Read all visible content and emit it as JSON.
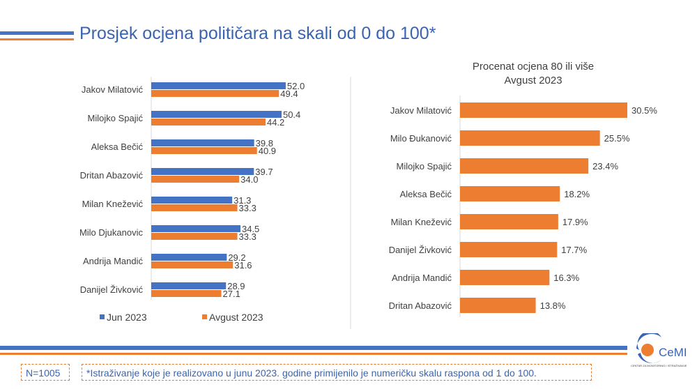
{
  "title": "Prosjek ocjena političara na skali od 0 do 100*",
  "colors": {
    "jun": "#4472c4",
    "avgust": "#ed7d31",
    "title": "#3a64b0"
  },
  "chart_data": [
    {
      "type": "bar",
      "orientation": "horizontal",
      "categories": [
        "Jakov Milatović",
        "Milojko Spajić",
        "Aleksa Bečić",
        "Dritan Abazović",
        "Milan Knežević",
        "Milo Djukanovic",
        "Andrija Mandić",
        "Danijel Živković"
      ],
      "series": [
        {
          "name": "Jun 2023",
          "values": [
            52.0,
            50.4,
            39.8,
            39.7,
            31.3,
            34.5,
            29.2,
            28.9
          ]
        },
        {
          "name": "Avgust 2023",
          "values": [
            49.4,
            44.2,
            40.9,
            34.0,
            33.3,
            33.3,
            31.6,
            27.1
          ]
        }
      ],
      "legend": "bottom",
      "grid": false
    },
    {
      "type": "bar",
      "orientation": "horizontal",
      "title_lines": [
        "Procenat ocjena 80 ili više",
        "Avgust 2023"
      ],
      "categories": [
        "Jakov Milatović",
        "Milo Đukanović",
        "Milojko Spajić",
        "Aleksa Bečić",
        "Milan Knežević",
        "Danijel Živković",
        "Andrija Mandić",
        "Dritan Abazović"
      ],
      "values": [
        30.5,
        25.5,
        23.4,
        18.2,
        17.9,
        17.7,
        16.3,
        13.8
      ],
      "value_suffix": "%",
      "grid": false
    }
  ],
  "footer": {
    "sample": "N=1005",
    "note": "*Istraživanje koje je realizovano u junu 2023. godine primijenilo je numeričku skalu raspona od 1 do 100.",
    "logo": "CeMI",
    "logo_sub": "CENTAR ZA MONITORING I ISTRAŽIVANJE"
  }
}
